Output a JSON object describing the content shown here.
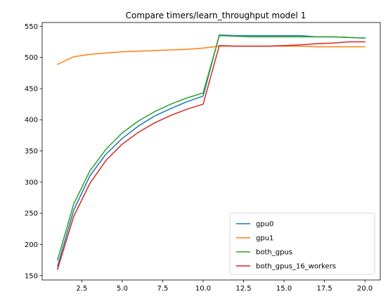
{
  "chart_data": {
    "type": "line",
    "title": "Compare timers/learn_throughput model 1",
    "xlabel": "",
    "ylabel": "",
    "xlim": [
      0.05,
      20.95
    ],
    "ylim": [
      143,
      556
    ],
    "x_ticks": [
      2.5,
      5.0,
      7.5,
      10.0,
      12.5,
      15.0,
      17.5,
      20.0
    ],
    "x_tick_labels": [
      "2.5",
      "5.0",
      "7.5",
      "10.0",
      "12.5",
      "15.0",
      "17.5",
      "20.0"
    ],
    "y_ticks": [
      150,
      200,
      250,
      300,
      350,
      400,
      450,
      500,
      550
    ],
    "y_tick_labels": [
      "150",
      "200",
      "250",
      "300",
      "350",
      "400",
      "450",
      "500",
      "550"
    ],
    "grid": false,
    "legend_position": "lower-right",
    "x": [
      1,
      2,
      3,
      4,
      5,
      6,
      7,
      8,
      9,
      10,
      11,
      12,
      13,
      14,
      15,
      16,
      17,
      18,
      19,
      20
    ],
    "series": [
      {
        "name": "gpu0",
        "color": "#1f77b4",
        "values": [
          165,
          255,
          310,
          345,
          370,
          390,
          406,
          418,
          429,
          438,
          536,
          535,
          535,
          535,
          535,
          535,
          533,
          533,
          532,
          531
        ]
      },
      {
        "name": "gpu1",
        "color": "#ff7f0e",
        "values": [
          489,
          501,
          505,
          507,
          509,
          510,
          511,
          512,
          513,
          515,
          518,
          518,
          518,
          518,
          518,
          518,
          517,
          517,
          517,
          517
        ]
      },
      {
        "name": "both_gpus",
        "color": "#2ca02c",
        "values": [
          175,
          265,
          318,
          353,
          379,
          398,
          413,
          425,
          435,
          443,
          535,
          534,
          533,
          533,
          533,
          533,
          533,
          533,
          532,
          531
        ]
      },
      {
        "name": "both_gpus_16_workers",
        "color": "#d62728",
        "values": [
          160,
          245,
          298,
          335,
          361,
          380,
          395,
          407,
          417,
          425,
          519,
          518,
          518,
          518,
          519,
          520,
          522,
          523,
          525,
          525
        ]
      }
    ]
  }
}
